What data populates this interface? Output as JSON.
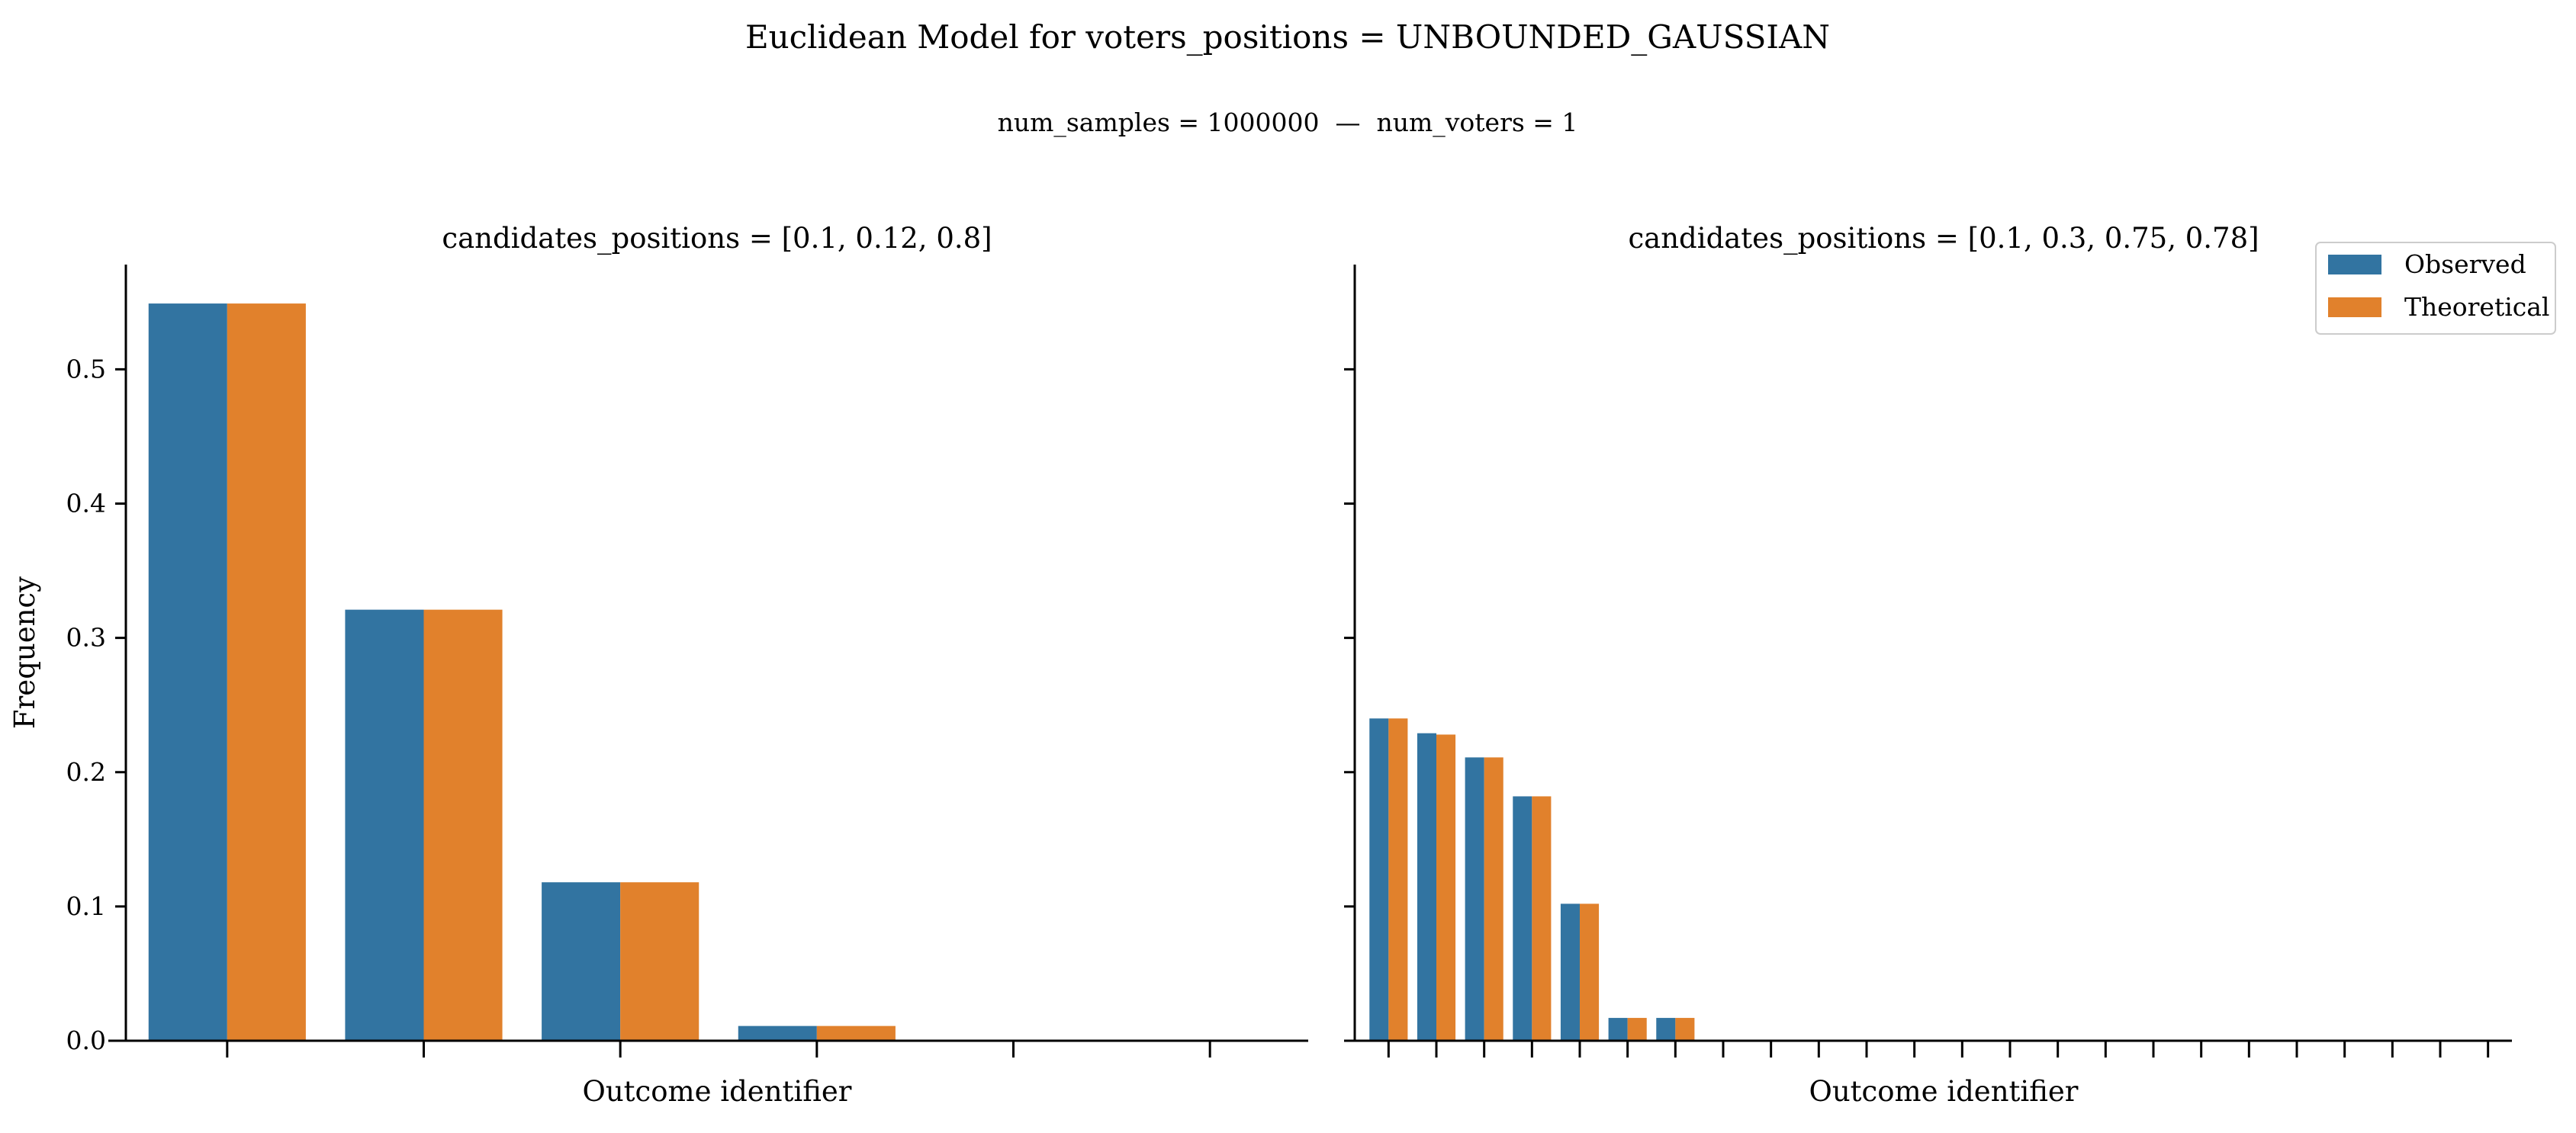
{
  "figure": {
    "title": "Euclidean Model for voters_positions = UNBOUNDED_GAUSSIAN",
    "subtitle": "num_samples = 1000000  —  num_voters = 1"
  },
  "legend": {
    "placement": "top-right",
    "entries": [
      {
        "label": "Observed",
        "color": "#3274a1"
      },
      {
        "label": "Theoretical",
        "color": "#e1812c"
      }
    ]
  },
  "chart_data": [
    {
      "type": "bar",
      "title": "candidates_positions = [0.1, 0.12, 0.8]",
      "xlabel": "Outcome identifier",
      "ylabel": "Frequency",
      "ylim": [
        0,
        0.578
      ],
      "yticks": [
        0.0,
        0.1,
        0.2,
        0.3,
        0.4,
        0.5
      ],
      "yticklabels": [
        "0.0",
        "0.1",
        "0.2",
        "0.3",
        "0.4",
        "0.5"
      ],
      "num_categories": 6,
      "series": [
        {
          "name": "Observed",
          "color": "#3274a1",
          "values": [
            0.549,
            0.321,
            0.118,
            0.011,
            0,
            0
          ]
        },
        {
          "name": "Theoretical",
          "color": "#e1812c",
          "values": [
            0.549,
            0.321,
            0.118,
            0.011,
            0,
            0
          ]
        }
      ]
    },
    {
      "type": "bar",
      "title": "candidates_positions = [0.1, 0.3, 0.75, 0.78]",
      "xlabel": "Outcome identifier",
      "ylabel": "",
      "ylim": [
        0,
        0.578
      ],
      "yticks": [
        0.0,
        0.1,
        0.2,
        0.3,
        0.4,
        0.5
      ],
      "num_categories": 24,
      "series": [
        {
          "name": "Observed",
          "color": "#3274a1",
          "values": [
            0.24,
            0.229,
            0.211,
            0.182,
            0.102,
            0.017,
            0.017,
            0,
            0,
            0,
            0,
            0,
            0,
            0,
            0,
            0,
            0,
            0,
            0,
            0,
            0,
            0,
            0,
            0
          ]
        },
        {
          "name": "Theoretical",
          "color": "#e1812c",
          "values": [
            0.24,
            0.228,
            0.211,
            0.182,
            0.102,
            0.017,
            0.017,
            0,
            0,
            0,
            0,
            0,
            0,
            0,
            0,
            0,
            0,
            0,
            0,
            0,
            0,
            0,
            0,
            0
          ]
        }
      ]
    }
  ]
}
